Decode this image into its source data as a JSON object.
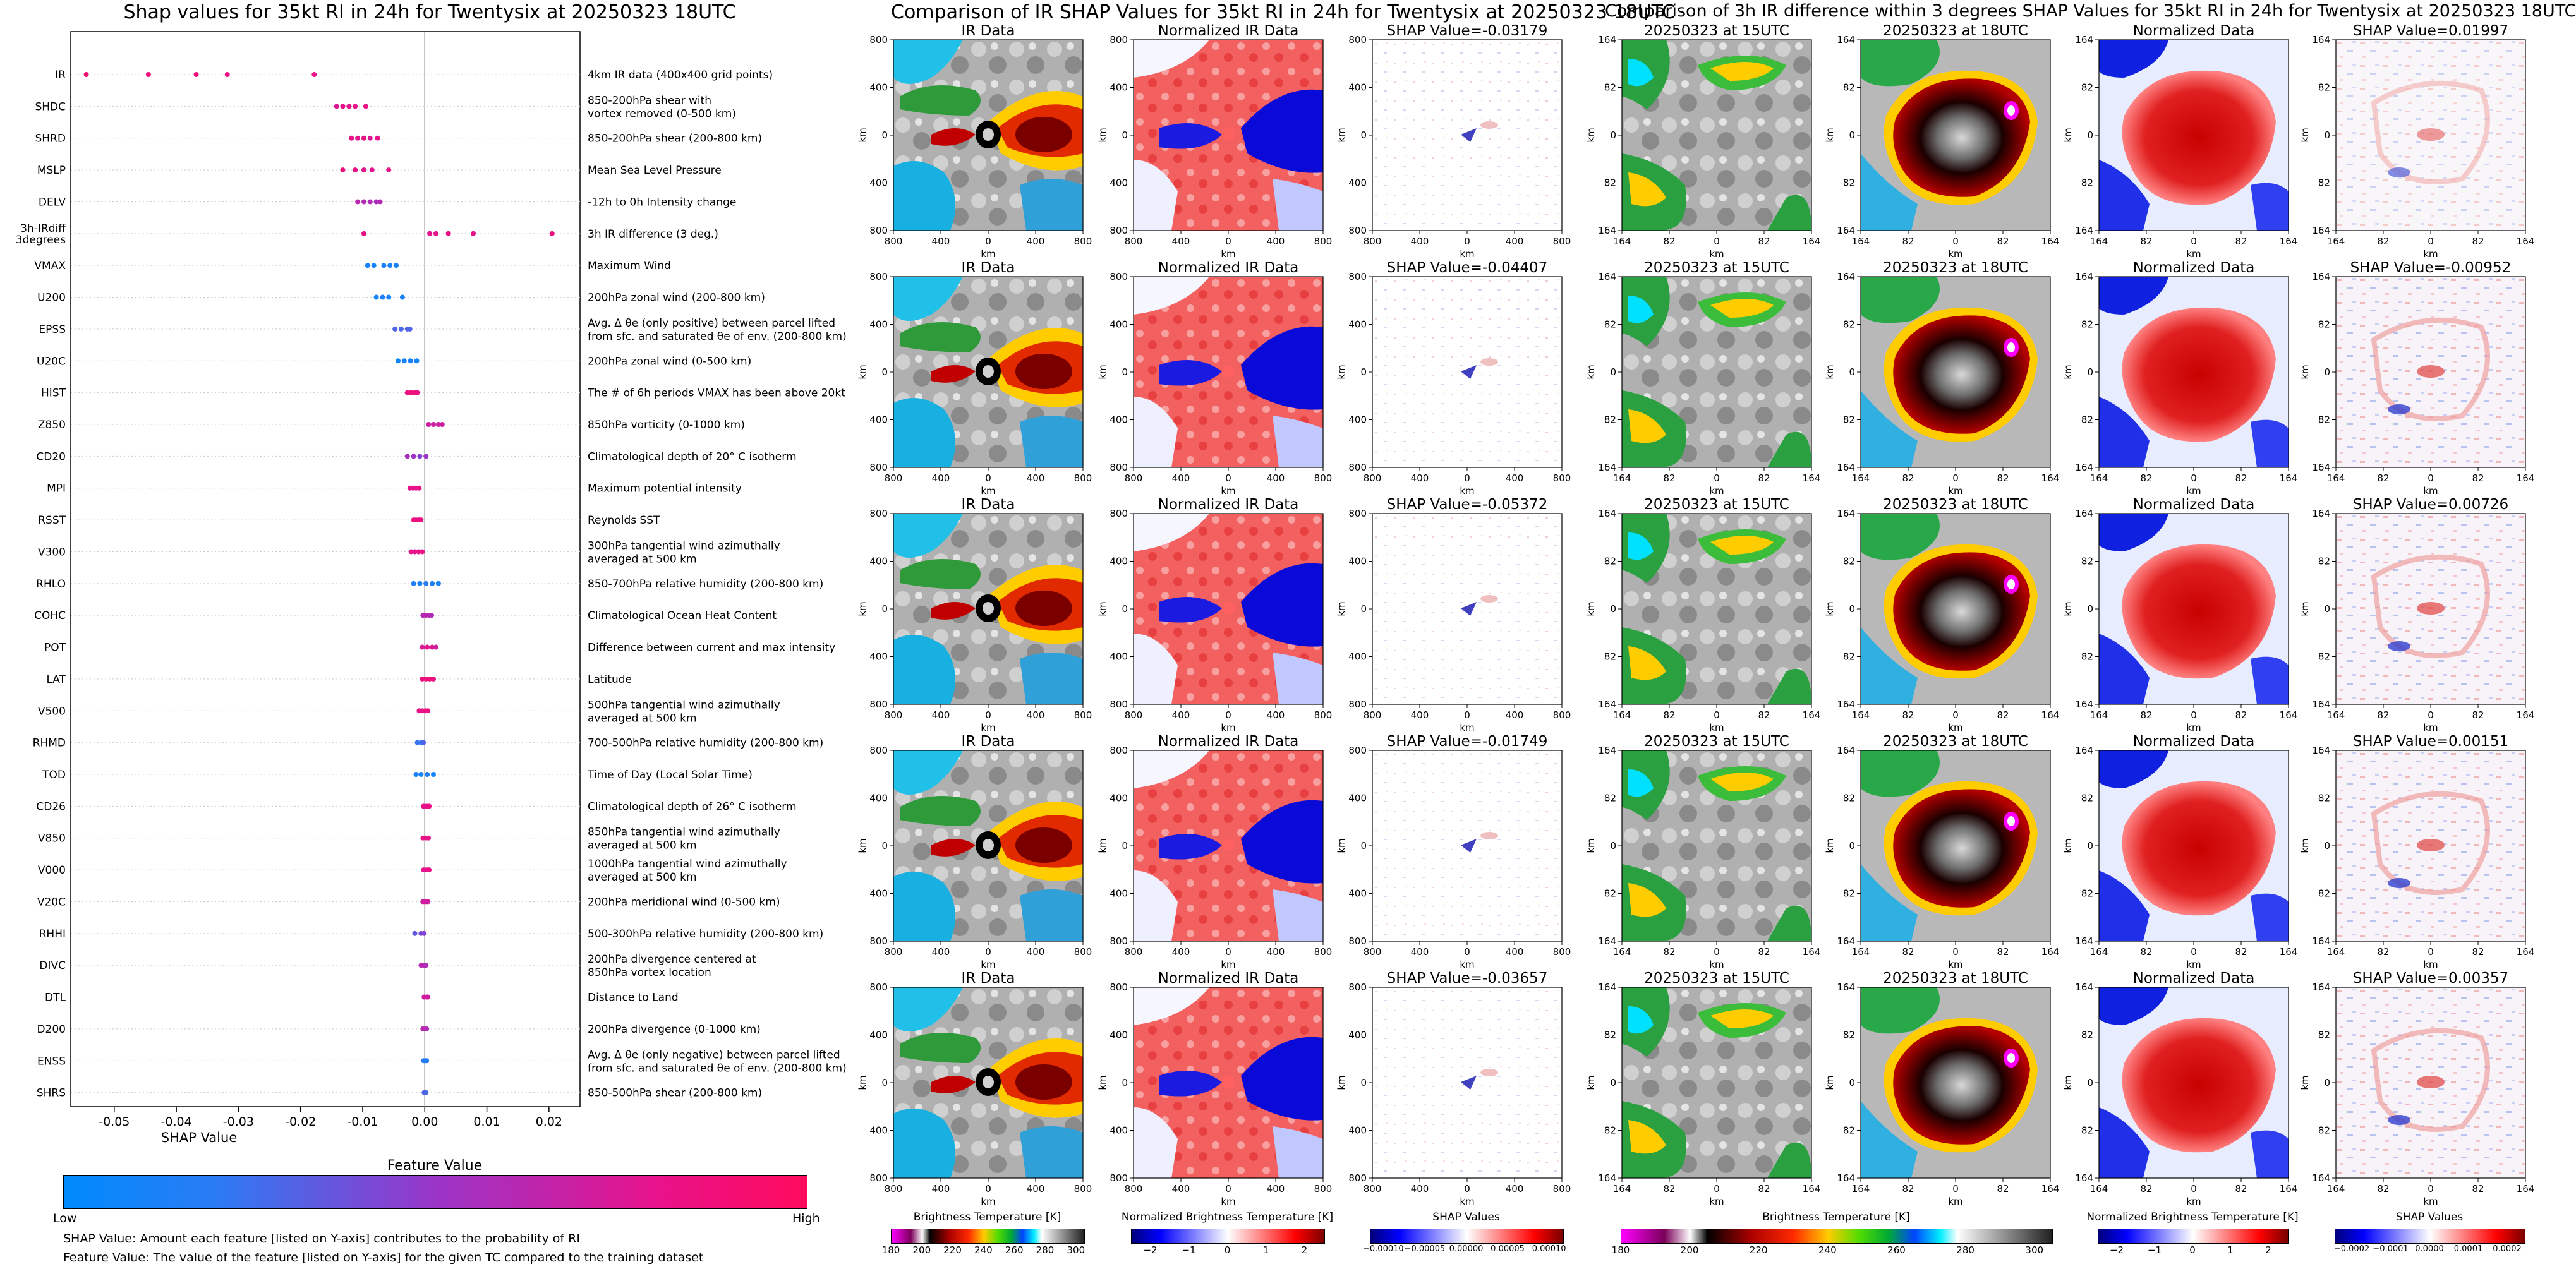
{
  "colors": {
    "low": "#1e88ff",
    "mid": "#9933cc",
    "high": "#ff0a6c"
  },
  "chart_data": [
    {
      "type": "scatter",
      "title": "Shap values for 35kt RI in 24h for Twentysix at 20250323 18UTC",
      "xlabel": "SHAP Value",
      "xlim": [
        -0.057,
        0.025
      ],
      "xticks": [
        "-0.05",
        "-0.04",
        "-0.03",
        "-0.02",
        "-0.01",
        "0.00",
        "0.01",
        "0.02"
      ],
      "xtick_values": [
        -0.05,
        -0.04,
        -0.03,
        -0.02,
        -0.01,
        0,
        0.01,
        0.02
      ],
      "colorbar": {
        "title": "Feature Value",
        "low": "Low",
        "high": "High"
      },
      "features": [
        {
          "name": "IR",
          "desc": "4km IR data (400x400 grid points)",
          "points": [
            [
              -0.0545,
              0.9
            ],
            [
              -0.0445,
              0.88
            ],
            [
              -0.0368,
              0.85
            ],
            [
              -0.0318,
              0.82
            ],
            [
              -0.0178,
              0.8
            ]
          ]
        },
        {
          "name": "SHDC",
          "desc": "850-200hPa shear with\nvortex removed (0-500 km)",
          "points": [
            [
              -0.0142,
              0.75
            ],
            [
              -0.0132,
              0.8
            ],
            [
              -0.0122,
              0.78
            ],
            [
              -0.0112,
              0.8
            ],
            [
              -0.0095,
              0.82
            ]
          ]
        },
        {
          "name": "SHRD",
          "desc": "850-200hPa shear (200-800 km)",
          "points": [
            [
              -0.0118,
              0.8
            ],
            [
              -0.0108,
              0.78
            ],
            [
              -0.0098,
              0.82
            ],
            [
              -0.0088,
              0.75
            ],
            [
              -0.0076,
              0.8
            ]
          ]
        },
        {
          "name": "MSLP",
          "desc": "Mean Sea Level Pressure",
          "points": [
            [
              -0.0132,
              0.85
            ],
            [
              -0.0112,
              0.82
            ],
            [
              -0.0098,
              0.8
            ],
            [
              -0.0085,
              0.78
            ],
            [
              -0.0058,
              0.8
            ]
          ]
        },
        {
          "name": "DELV",
          "desc": "-12h to 0h Intensity change",
          "points": [
            [
              -0.0108,
              0.62
            ],
            [
              -0.0098,
              0.6
            ],
            [
              -0.0088,
              0.58
            ],
            [
              -0.0078,
              0.55
            ],
            [
              -0.0072,
              0.6
            ]
          ]
        },
        {
          "name": "3h-IRdiff\n3degrees",
          "desc": "3h IR difference (3 deg.)",
          "points": [
            [
              -0.0098,
              0.82
            ],
            [
              0.0008,
              0.78
            ],
            [
              0.0018,
              0.8
            ],
            [
              0.0038,
              0.82
            ],
            [
              0.0078,
              0.8
            ],
            [
              0.0205,
              0.85
            ]
          ]
        },
        {
          "name": "VMAX",
          "desc": "Maximum Wind",
          "points": [
            [
              -0.0092,
              0.12
            ],
            [
              -0.0082,
              0.1
            ],
            [
              -0.0066,
              0.12
            ],
            [
              -0.0056,
              0.1
            ],
            [
              -0.0046,
              0.12
            ]
          ]
        },
        {
          "name": "U200",
          "desc": "200hPa zonal wind (200-800 km)",
          "points": [
            [
              -0.0078,
              0.1
            ],
            [
              -0.0068,
              0.12
            ],
            [
              -0.0058,
              0.1
            ],
            [
              -0.0036,
              0.12
            ]
          ]
        },
        {
          "name": "EPSS",
          "desc": "Avg. Δ θe (only positive) between parcel lifted\nfrom sfc. and saturated θe of env. (200-800 km)",
          "points": [
            [
              -0.0048,
              0.3
            ],
            [
              -0.0038,
              0.28
            ],
            [
              -0.0028,
              0.32
            ],
            [
              -0.0024,
              0.3
            ]
          ]
        },
        {
          "name": "U20C",
          "desc": "200hPa zonal wind (0-500 km)",
          "points": [
            [
              -0.0043,
              0.08
            ],
            [
              -0.0033,
              0.1
            ],
            [
              -0.0023,
              0.12
            ],
            [
              -0.0013,
              0.1
            ]
          ]
        },
        {
          "name": "HIST",
          "desc": "The # of 6h periods VMAX has been above 20kt",
          "points": [
            [
              -0.0028,
              0.85
            ],
            [
              -0.0022,
              0.88
            ],
            [
              -0.0016,
              0.85
            ],
            [
              -0.0012,
              0.82
            ]
          ]
        },
        {
          "name": "Z850",
          "desc": "850hPa vorticity (0-1000 km)",
          "points": [
            [
              0.0006,
              0.7
            ],
            [
              0.0014,
              0.68
            ],
            [
              0.0022,
              0.7
            ],
            [
              0.0028,
              0.68
            ]
          ]
        },
        {
          "name": "CD20",
          "desc": "Climatological depth of 20° C isotherm",
          "points": [
            [
              -0.0028,
              0.55
            ],
            [
              -0.0018,
              0.5
            ],
            [
              -0.0008,
              0.45
            ],
            [
              0.0002,
              0.5
            ]
          ]
        },
        {
          "name": "MPI",
          "desc": "Maximum potential intensity",
          "points": [
            [
              -0.0024,
              0.8
            ],
            [
              -0.0019,
              0.82
            ],
            [
              -0.0014,
              0.8
            ],
            [
              -0.0009,
              0.82
            ]
          ]
        },
        {
          "name": "RSST",
          "desc": "Reynolds SST",
          "points": [
            [
              -0.0018,
              0.85
            ],
            [
              -0.0014,
              0.82
            ],
            [
              -0.001,
              0.85
            ],
            [
              -0.0006,
              0.82
            ]
          ]
        },
        {
          "name": "V300",
          "desc": "300hPa tangential wind azimuthally\naveraged at 500 km",
          "points": [
            [
              -0.0022,
              0.78
            ],
            [
              -0.0016,
              0.8
            ],
            [
              -0.001,
              0.82
            ],
            [
              -0.0004,
              0.8
            ]
          ]
        },
        {
          "name": "RHLO",
          "desc": "850-700hPa relative humidity (200-800 km)",
          "points": [
            [
              -0.0018,
              0.15
            ],
            [
              -0.0008,
              0.12
            ],
            [
              0.0002,
              0.2
            ],
            [
              0.0012,
              0.15
            ],
            [
              0.0022,
              0.1
            ]
          ]
        },
        {
          "name": "COHC",
          "desc": "Climatological Ocean Heat Content",
          "points": [
            [
              -0.0003,
              0.6
            ],
            [
              0.0002,
              0.62
            ],
            [
              0.0007,
              0.6
            ],
            [
              0.0011,
              0.58
            ]
          ]
        },
        {
          "name": "POT",
          "desc": "Difference between current and max intensity",
          "points": [
            [
              -0.0004,
              0.75
            ],
            [
              0.0004,
              0.78
            ],
            [
              0.0012,
              0.75
            ],
            [
              0.0018,
              0.72
            ]
          ]
        },
        {
          "name": "LAT",
          "desc": "Latitude",
          "points": [
            [
              -0.0004,
              0.85
            ],
            [
              0.0002,
              0.88
            ],
            [
              0.0008,
              0.85
            ],
            [
              0.0014,
              0.82
            ]
          ]
        },
        {
          "name": "V500",
          "desc": "500hPa tangential wind azimuthally\naveraged at 500 km",
          "points": [
            [
              -0.0009,
              0.82
            ],
            [
              -0.0004,
              0.8
            ],
            [
              0.0001,
              0.85
            ],
            [
              0.0005,
              0.82
            ]
          ]
        },
        {
          "name": "RHMD",
          "desc": "700-500hPa relative humidity (200-800 km)",
          "points": [
            [
              -0.0012,
              0.25
            ],
            [
              -0.0006,
              0.2
            ],
            [
              -0.0002,
              0.3
            ]
          ]
        },
        {
          "name": "TOD",
          "desc": "Time of Day (Local Solar Time)",
          "points": [
            [
              -0.0014,
              0.12
            ],
            [
              -0.0006,
              0.1
            ],
            [
              0.0004,
              0.15
            ],
            [
              0.0014,
              0.1
            ]
          ]
        },
        {
          "name": "CD26",
          "desc": "Climatological depth of 26° C isotherm",
          "points": [
            [
              -0.0002,
              0.8
            ],
            [
              0.0003,
              0.78
            ],
            [
              0.0007,
              0.82
            ]
          ]
        },
        {
          "name": "V850",
          "desc": "850hPa tangential wind azimuthally\naveraged at 500 km",
          "points": [
            [
              -0.0003,
              0.8
            ],
            [
              0.0002,
              0.82
            ],
            [
              0.0006,
              0.8
            ]
          ]
        },
        {
          "name": "V000",
          "desc": "1000hPa tangential wind azimuthally\naveraged at 500 km",
          "points": [
            [
              -0.0002,
              0.78
            ],
            [
              0.0003,
              0.8
            ],
            [
              0.0007,
              0.82
            ]
          ]
        },
        {
          "name": "V20C",
          "desc": "200hPa meridional wind (0-500 km)",
          "points": [
            [
              -0.0003,
              0.7
            ],
            [
              0.0001,
              0.72
            ],
            [
              0.0005,
              0.7
            ]
          ]
        },
        {
          "name": "RHHI",
          "desc": "500-300hPa relative humidity (200-800 km)",
          "points": [
            [
              -0.0016,
              0.35
            ],
            [
              -0.0006,
              0.4
            ],
            [
              -0.0001,
              0.45
            ]
          ]
        },
        {
          "name": "DIVC",
          "desc": "200hPa divergence centered at\n850hPa vortex location",
          "points": [
            [
              -0.0006,
              0.6
            ],
            [
              -0.0002,
              0.62
            ],
            [
              0.0002,
              0.58
            ]
          ]
        },
        {
          "name": "DTL",
          "desc": "Distance to Land",
          "points": [
            [
              -0.0001,
              0.7
            ],
            [
              0.0003,
              0.72
            ],
            [
              0.0005,
              0.7
            ]
          ]
        },
        {
          "name": "D200",
          "desc": "200hPa divergence (0-1000 km)",
          "points": [
            [
              -0.0003,
              0.6
            ],
            [
              0.0001,
              0.62
            ],
            [
              0.0003,
              0.58
            ]
          ]
        },
        {
          "name": "ENSS",
          "desc": "Avg. Δ θe (only negative) between parcel lifted\nfrom sfc. and saturated θe of env. (200-800 km)",
          "points": [
            [
              -0.0002,
              0.2
            ],
            [
              0.0001,
              0.15
            ],
            [
              0.0003,
              0.18
            ]
          ]
        },
        {
          "name": "SHRS",
          "desc": "850-500hPa shear (200-800 km)",
          "points": [
            [
              -0.0001,
              0.3
            ],
            [
              0.0001,
              0.32
            ],
            [
              0.0002,
              0.28
            ]
          ]
        }
      ]
    },
    {
      "type": "heatmap",
      "title": "Comparison of IR SHAP Values for 35kt RI in 24h for Twentysix at 20250323 18UTC",
      "panel_titles": [
        "IR Data",
        "Normalized IR Data"
      ],
      "shap_titles": [
        "SHAP Value=-0.03179",
        "SHAP Value=-0.04407",
        "SHAP Value=-0.05372",
        "SHAP Value=-0.01749",
        "SHAP Value=-0.03657"
      ],
      "xticks": [
        "800",
        "400",
        "0",
        "400",
        "800"
      ],
      "yticks": [
        "800",
        "400",
        "0",
        "400",
        "800"
      ],
      "axis_label": "km",
      "colorbars": [
        {
          "label": "Brightness Temperature [K]",
          "ticks": [
            "180",
            "200",
            "220",
            "240",
            "260",
            "280",
            "300"
          ]
        },
        {
          "label": "Normalized Brightness Temperature [K]",
          "ticks": [
            "−2",
            "−1",
            "0",
            "1",
            "2"
          ]
        },
        {
          "label": "SHAP Values",
          "ticks": [
            "−0.00010",
            "−0.00005",
            "0.00000",
            "0.00005",
            "0.00010"
          ]
        }
      ]
    },
    {
      "type": "heatmap",
      "title": "Comparison of 3h IR difference within 3 degrees SHAP Values for 35kt RI in 24h for Twentysix at 20250323 18UTC",
      "panel_titles": [
        "20250323 at 15UTC",
        "20250323 at 18UTC",
        "Normalized Data"
      ],
      "shap_titles": [
        "SHAP Value=0.01997",
        "SHAP Value=-0.00952",
        "SHAP Value=0.00726",
        "SHAP Value=0.00151",
        "SHAP Value=0.00357"
      ],
      "xticks": [
        "164",
        "82",
        "0",
        "82",
        "164"
      ],
      "yticks": [
        "164",
        "82",
        "0",
        "82",
        "164"
      ],
      "axis_label": "km",
      "colorbars": [
        {
          "label": "Brightness Temperature [K]",
          "ticks": [
            "180",
            "200",
            "220",
            "240",
            "260",
            "280",
            "300"
          ]
        },
        {
          "label": "Normalized Brightness Temperature [K]",
          "ticks": [
            "−2",
            "−1",
            "0",
            "1",
            "2"
          ]
        },
        {
          "label": "SHAP Values",
          "ticks": [
            "−0.0002",
            "−0.0001",
            "0.0000",
            "0.0001",
            "0.0002"
          ]
        }
      ]
    }
  ],
  "notes": {
    "shap_value": "SHAP Value: Amount each feature [listed on Y-axis] contributes to the probability of RI",
    "feature_value": "Feature Value: The value of the feature [listed on Y-axis] for the given TC compared to the training dataset"
  }
}
